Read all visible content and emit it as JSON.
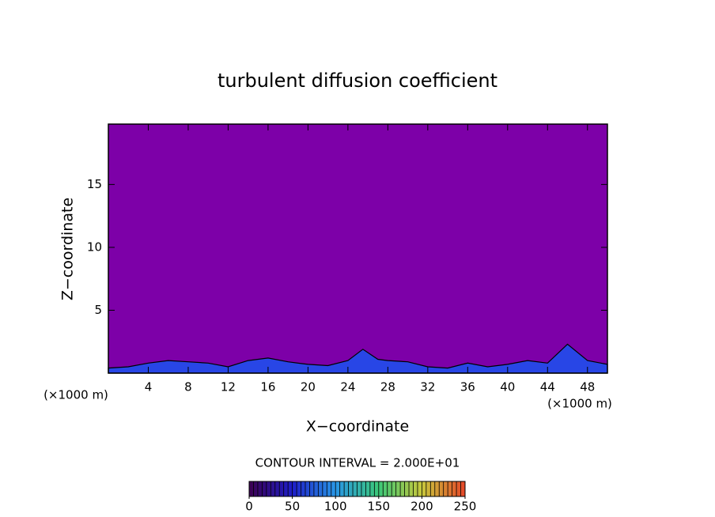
{
  "chart_data": {
    "type": "contour",
    "title": "turbulent diffusion coefficient",
    "x_label": "X−coordinate",
    "y_label": "Z−coordinate",
    "x_unit": "(×1000 m)",
    "y_unit": "(×1000 m)",
    "xlim": [
      0,
      50
    ],
    "ylim": [
      0,
      19.8
    ],
    "xticks": [
      4,
      8,
      12,
      16,
      20,
      24,
      28,
      32,
      36,
      40,
      44,
      48
    ],
    "yticks": [
      5,
      10,
      15
    ],
    "field_color": "#7d00a8",
    "x": [
      0,
      2,
      4,
      6,
      8,
      10,
      12,
      14,
      16,
      18,
      20,
      22,
      24,
      25.5,
      27,
      28,
      30,
      32,
      34,
      36,
      38,
      40,
      42,
      44,
      46,
      48,
      50
    ],
    "series": [
      {
        "color": "#2846e6",
        "values": [
          0.4,
          0.5,
          0.8,
          1.0,
          0.9,
          0.8,
          0.5,
          1.0,
          1.2,
          0.9,
          0.7,
          0.6,
          1.0,
          1.9,
          1.1,
          1.0,
          0.9,
          0.5,
          0.4,
          0.8,
          0.5,
          0.7,
          1.0,
          0.8,
          2.3,
          1.0,
          0.7
        ]
      }
    ],
    "contour_interval_text": "CONTOUR INTERVAL = 2.000E+01",
    "colorbar": {
      "lim": [
        0,
        250
      ],
      "ticks": [
        0,
        50,
        100,
        150,
        200,
        250
      ],
      "colors": [
        "#3c0050",
        "#1e1ec8",
        "#2896e6",
        "#3cc878",
        "#c8c83c",
        "#e64628"
      ]
    }
  }
}
